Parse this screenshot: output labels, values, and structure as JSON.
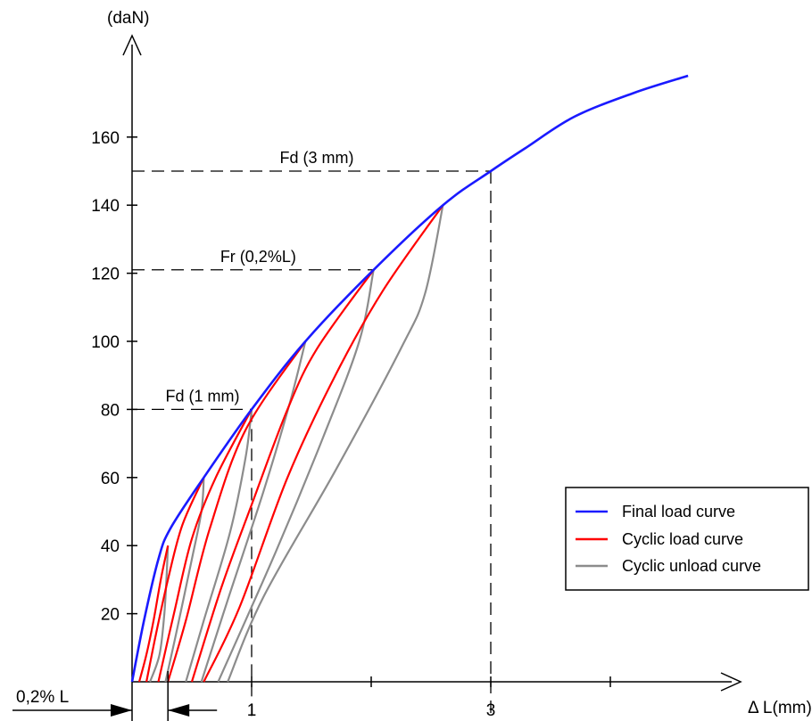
{
  "chart_data": {
    "type": "line",
    "title": "",
    "ylabel": "(daN)",
    "xlabel": "Δ L(mm)",
    "xlim": [
      0,
      4.9
    ],
    "ylim": [
      0,
      178
    ],
    "y_ticks": [
      20,
      40,
      60,
      80,
      100,
      120,
      140,
      160
    ],
    "x_tick_positions": [
      1,
      2,
      3,
      4
    ],
    "x_tick_labels": [
      {
        "value": 1,
        "label": "1"
      },
      {
        "value": 3,
        "label": "3"
      }
    ],
    "grid": false,
    "legend_position": "right",
    "legend": [
      {
        "name": "Final load curve",
        "color": "#1a1aff"
      },
      {
        "name": "Cyclic load curve",
        "color": "#ff0000"
      },
      {
        "name": "Cyclic unload curve",
        "color": "#8c8c8c"
      }
    ],
    "annotations": [
      {
        "label": "Fd (3 mm)",
        "x": 3,
        "y": 150
      },
      {
        "label": "Fr (0,2%L)",
        "x": 2.02,
        "y": 121
      },
      {
        "label": "Fd (1 mm)",
        "x": 1,
        "y": 80
      }
    ],
    "offset_marker": {
      "label": "0,2% L",
      "from": 0,
      "to": 0.3
    },
    "series": [
      {
        "name": "Final load curve",
        "color": "#1a1aff",
        "points": [
          [
            0,
            0
          ],
          [
            0.1,
            18
          ],
          [
            0.22,
            36
          ],
          [
            0.32,
            45
          ],
          [
            0.6,
            60
          ],
          [
            1,
            80
          ],
          [
            1.45,
            100
          ],
          [
            2.02,
            121
          ],
          [
            2.6,
            140
          ],
          [
            3,
            150
          ],
          [
            3.3,
            157
          ],
          [
            3.7,
            166
          ],
          [
            4.2,
            173
          ],
          [
            4.65,
            178
          ]
        ]
      },
      {
        "name": "Cyclic load curve",
        "color": "#ff0000",
        "curves": [
          [
            [
              0.06,
              0
            ],
            [
              0.12,
              8
            ],
            [
              0.18,
              18
            ],
            [
              0.24,
              30
            ],
            [
              0.3,
              40
            ]
          ],
          [
            [
              0.12,
              0
            ],
            [
              0.2,
              14
            ],
            [
              0.3,
              30
            ],
            [
              0.42,
              46
            ],
            [
              0.6,
              60
            ]
          ],
          [
            [
              0.22,
              0
            ],
            [
              0.35,
              20
            ],
            [
              0.5,
              42
            ],
            [
              0.7,
              60
            ],
            [
              1,
              80
            ]
          ],
          [
            [
              0.3,
              0
            ],
            [
              0.45,
              18
            ],
            [
              0.65,
              45
            ],
            [
              0.95,
              74
            ],
            [
              1.45,
              100
            ]
          ],
          [
            [
              0.5,
              0
            ],
            [
              0.75,
              28
            ],
            [
              1,
              52
            ],
            [
              1.3,
              80
            ],
            [
              1.55,
              98
            ],
            [
              2.02,
              121
            ]
          ],
          [
            [
              0.6,
              0
            ],
            [
              0.9,
              22
            ],
            [
              1.3,
              60
            ],
            [
              1.7,
              90
            ],
            [
              2.1,
              115
            ],
            [
              2.6,
              140
            ]
          ]
        ]
      },
      {
        "name": "Cyclic unload curve",
        "color": "#8c8c8c",
        "curves": [
          [
            [
              0.3,
              40
            ],
            [
              0.29,
              32
            ],
            [
              0.27,
              20
            ],
            [
              0.23,
              8
            ],
            [
              0.15,
              0
            ]
          ],
          [
            [
              0.6,
              60
            ],
            [
              0.58,
              50
            ],
            [
              0.5,
              36
            ],
            [
              0.38,
              16
            ],
            [
              0.28,
              0
            ]
          ],
          [
            [
              1,
              80
            ],
            [
              0.95,
              66
            ],
            [
              0.82,
              44
            ],
            [
              0.6,
              18
            ],
            [
              0.45,
              0
            ]
          ],
          [
            [
              1.45,
              100
            ],
            [
              1.32,
              82
            ],
            [
              1.1,
              56
            ],
            [
              0.8,
              24
            ],
            [
              0.58,
              0
            ]
          ],
          [
            [
              2.02,
              121
            ],
            [
              1.9,
              100
            ],
            [
              1.6,
              72
            ],
            [
              1.2,
              38
            ],
            [
              0.72,
              0
            ]
          ],
          [
            [
              2.6,
              140
            ],
            [
              2.45,
              114
            ],
            [
              2.25,
              98
            ],
            [
              1.7,
              62
            ],
            [
              1.1,
              25
            ],
            [
              0.8,
              0
            ]
          ]
        ]
      }
    ]
  }
}
